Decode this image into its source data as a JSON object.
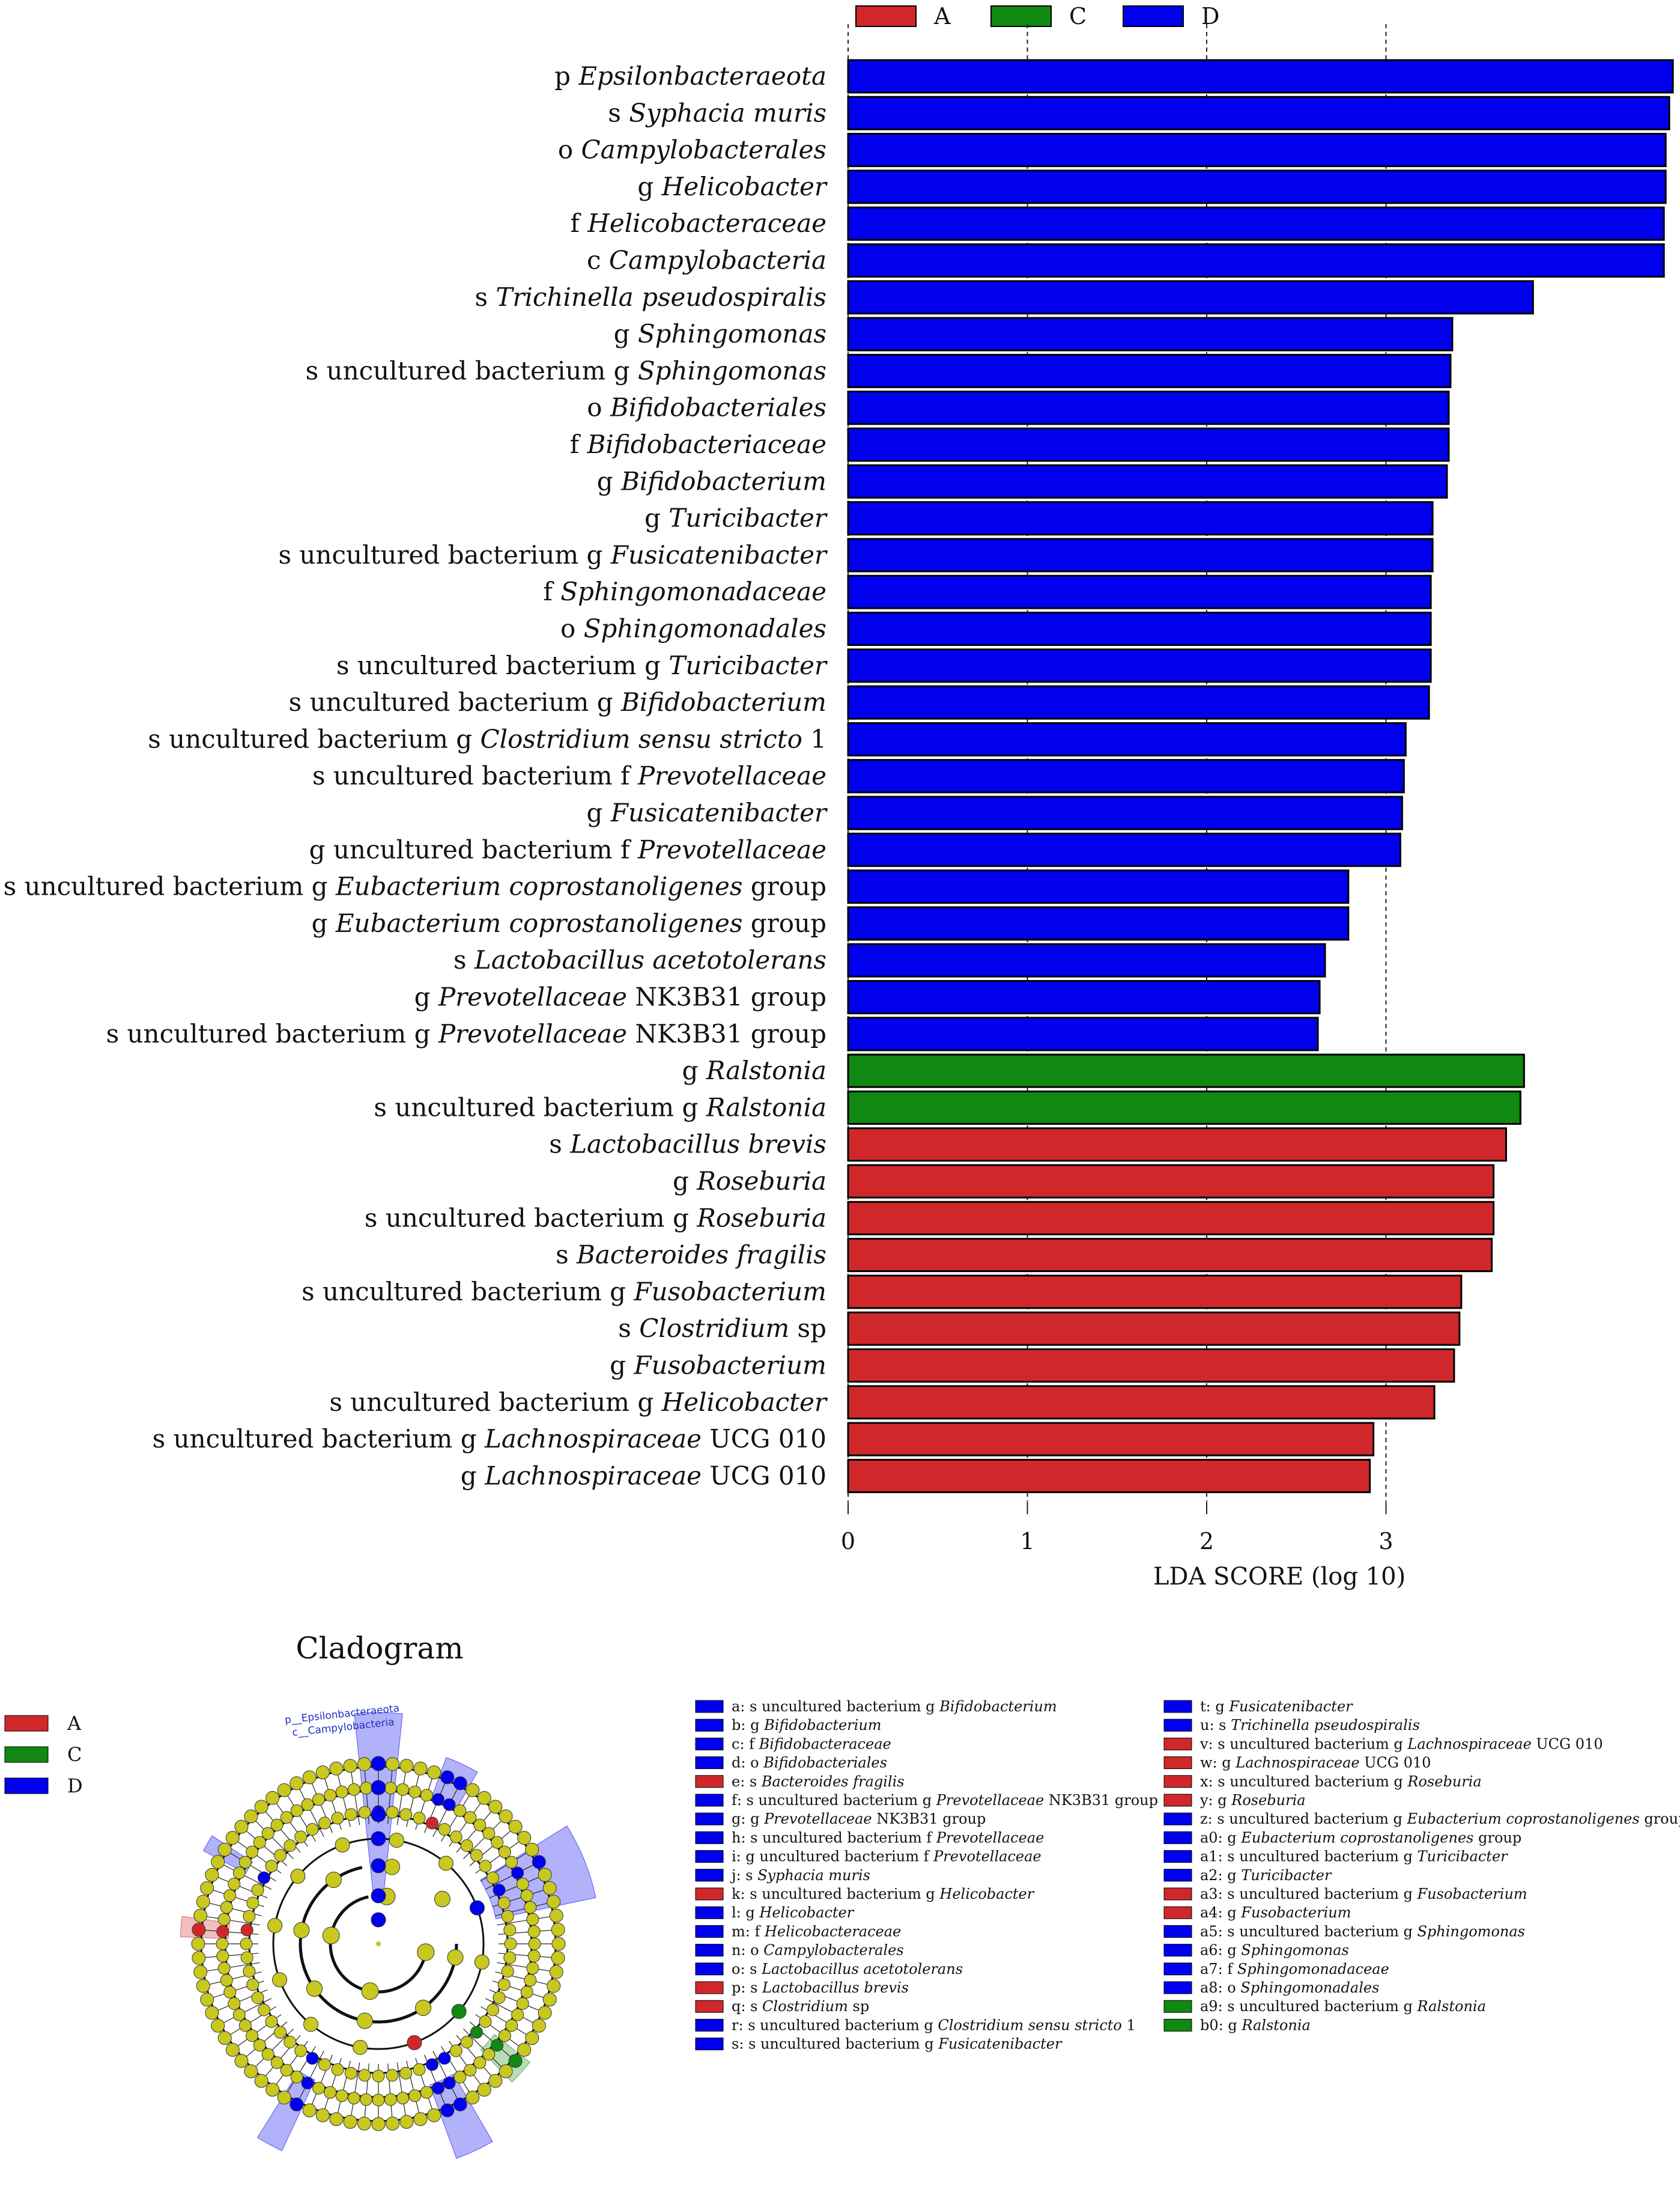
{
  "chart_data": {
    "type": "bar",
    "orientation": "horizontal",
    "xlabel": "LDA SCORE (log 10)",
    "xlim": [
      0,
      4.6
    ],
    "xticks": [
      0,
      1,
      2,
      3
    ],
    "legend": [
      {
        "name": "A",
        "color": "#d0282a"
      },
      {
        "name": "C",
        "color": "#118811"
      },
      {
        "name": "D",
        "color": "#0000ee"
      }
    ],
    "bars": [
      {
        "parts": [
          [
            "p ",
            false
          ],
          [
            "Epsilonbacteraeota",
            true
          ]
        ],
        "value": 4.6,
        "group": "D"
      },
      {
        "parts": [
          [
            "s ",
            false
          ],
          [
            "Syphacia muris",
            true
          ]
        ],
        "value": 4.58,
        "group": "D"
      },
      {
        "parts": [
          [
            "o ",
            false
          ],
          [
            "Campylobacterales",
            true
          ]
        ],
        "value": 4.56,
        "group": "D"
      },
      {
        "parts": [
          [
            "g ",
            false
          ],
          [
            "Helicobacter",
            true
          ]
        ],
        "value": 4.56,
        "group": "D"
      },
      {
        "parts": [
          [
            "f ",
            false
          ],
          [
            "Helicobacteraceae",
            true
          ]
        ],
        "value": 4.55,
        "group": "D"
      },
      {
        "parts": [
          [
            "c ",
            false
          ],
          [
            "Campylobacteria",
            true
          ]
        ],
        "value": 4.55,
        "group": "D"
      },
      {
        "parts": [
          [
            "s ",
            false
          ],
          [
            "Trichinella pseudospiralis",
            true
          ]
        ],
        "value": 3.82,
        "group": "D"
      },
      {
        "parts": [
          [
            "g ",
            false
          ],
          [
            "Sphingomonas",
            true
          ]
        ],
        "value": 3.37,
        "group": "D"
      },
      {
        "parts": [
          [
            "s uncultured bacterium g ",
            false
          ],
          [
            "Sphingomonas",
            true
          ]
        ],
        "value": 3.36,
        "group": "D"
      },
      {
        "parts": [
          [
            "o ",
            false
          ],
          [
            "Bifidobacteriales",
            true
          ]
        ],
        "value": 3.35,
        "group": "D"
      },
      {
        "parts": [
          [
            "f ",
            false
          ],
          [
            "Bifidobacteriaceae",
            true
          ]
        ],
        "value": 3.35,
        "group": "D"
      },
      {
        "parts": [
          [
            "g ",
            false
          ],
          [
            "Bifidobacterium",
            true
          ]
        ],
        "value": 3.34,
        "group": "D"
      },
      {
        "parts": [
          [
            "g ",
            false
          ],
          [
            "Turicibacter",
            true
          ]
        ],
        "value": 3.26,
        "group": "D"
      },
      {
        "parts": [
          [
            "s uncultured bacterium g ",
            false
          ],
          [
            "Fusicatenibacter",
            true
          ]
        ],
        "value": 3.26,
        "group": "D"
      },
      {
        "parts": [
          [
            "f ",
            false
          ],
          [
            "Sphingomonadaceae",
            true
          ]
        ],
        "value": 3.25,
        "group": "D"
      },
      {
        "parts": [
          [
            "o ",
            false
          ],
          [
            "Sphingomonadales",
            true
          ]
        ],
        "value": 3.25,
        "group": "D"
      },
      {
        "parts": [
          [
            "s uncultured bacterium g ",
            false
          ],
          [
            "Turicibacter",
            true
          ]
        ],
        "value": 3.25,
        "group": "D"
      },
      {
        "parts": [
          [
            "s uncultured bacterium g ",
            false
          ],
          [
            "Bifidobacterium",
            true
          ]
        ],
        "value": 3.24,
        "group": "D"
      },
      {
        "parts": [
          [
            "s uncultured bacterium g ",
            false
          ],
          [
            "Clostridium sensu stricto",
            true
          ],
          [
            " 1",
            false
          ]
        ],
        "value": 3.11,
        "group": "D"
      },
      {
        "parts": [
          [
            "s uncultured bacterium f ",
            false
          ],
          [
            "Prevotellaceae",
            true
          ]
        ],
        "value": 3.1,
        "group": "D"
      },
      {
        "parts": [
          [
            "g ",
            false
          ],
          [
            "Fusicatenibacter",
            true
          ]
        ],
        "value": 3.09,
        "group": "D"
      },
      {
        "parts": [
          [
            "g uncultured bacterium f ",
            false
          ],
          [
            "Prevotellaceae",
            true
          ]
        ],
        "value": 3.08,
        "group": "D"
      },
      {
        "parts": [
          [
            "s uncultured bacterium g ",
            false
          ],
          [
            "Eubacterium coprostanoligenes",
            true
          ],
          [
            " group",
            false
          ]
        ],
        "value": 2.79,
        "group": "D"
      },
      {
        "parts": [
          [
            "g ",
            false
          ],
          [
            "Eubacterium coprostanoligenes",
            true
          ],
          [
            " group",
            false
          ]
        ],
        "value": 2.79,
        "group": "D"
      },
      {
        "parts": [
          [
            "s ",
            false
          ],
          [
            "Lactobacillus acetotolerans",
            true
          ]
        ],
        "value": 2.66,
        "group": "D"
      },
      {
        "parts": [
          [
            "g ",
            false
          ],
          [
            "Prevotellaceae",
            true
          ],
          [
            " NK3B31 group",
            false
          ]
        ],
        "value": 2.63,
        "group": "D"
      },
      {
        "parts": [
          [
            "s uncultured bacterium g ",
            false
          ],
          [
            "Prevotellaceae",
            true
          ],
          [
            " NK3B31 group",
            false
          ]
        ],
        "value": 2.62,
        "group": "D"
      },
      {
        "parts": [
          [
            "g ",
            false
          ],
          [
            "Ralstonia",
            true
          ]
        ],
        "value": 3.77,
        "group": "C"
      },
      {
        "parts": [
          [
            "s uncultured bacterium g ",
            false
          ],
          [
            "Ralstonia",
            true
          ]
        ],
        "value": 3.75,
        "group": "C"
      },
      {
        "parts": [
          [
            "s ",
            false
          ],
          [
            "Lactobacillus brevis",
            true
          ]
        ],
        "value": 3.67,
        "group": "A"
      },
      {
        "parts": [
          [
            "g ",
            false
          ],
          [
            "Roseburia",
            true
          ]
        ],
        "value": 3.6,
        "group": "A"
      },
      {
        "parts": [
          [
            "s uncultured bacterium g ",
            false
          ],
          [
            "Roseburia",
            true
          ]
        ],
        "value": 3.6,
        "group": "A"
      },
      {
        "parts": [
          [
            "s ",
            false
          ],
          [
            "Bacteroides fragilis",
            true
          ]
        ],
        "value": 3.59,
        "group": "A"
      },
      {
        "parts": [
          [
            "s uncultured bacterium g ",
            false
          ],
          [
            "Fusobacterium",
            true
          ]
        ],
        "value": 3.42,
        "group": "A"
      },
      {
        "parts": [
          [
            "s ",
            false
          ],
          [
            "Clostridium",
            true
          ],
          [
            " sp",
            false
          ]
        ],
        "value": 3.41,
        "group": "A"
      },
      {
        "parts": [
          [
            "g ",
            false
          ],
          [
            "Fusobacterium",
            true
          ]
        ],
        "value": 3.38,
        "group": "A"
      },
      {
        "parts": [
          [
            "s uncultured bacterium g ",
            false
          ],
          [
            "Helicobacter",
            true
          ]
        ],
        "value": 3.27,
        "group": "A"
      },
      {
        "parts": [
          [
            "s uncultured bacterium g ",
            false
          ],
          [
            "Lachnospiraceae",
            true
          ],
          [
            " UCG 010",
            false
          ]
        ],
        "value": 2.93,
        "group": "A"
      },
      {
        "parts": [
          [
            "g ",
            false
          ],
          [
            "Lachnospiraceae",
            true
          ],
          [
            " UCG 010",
            false
          ]
        ],
        "value": 2.91,
        "group": "A"
      }
    ]
  },
  "cladogram": {
    "title": "Cladogram",
    "legend": [
      {
        "name": "A",
        "color": "#d0282a"
      },
      {
        "name": "C",
        "color": "#118811"
      },
      {
        "name": "D",
        "color": "#0000ee"
      }
    ],
    "top_labels": [
      "p__Epsilonbacteraeota",
      "c__Campylobacteria"
    ],
    "key": [
      {
        "parts": [
          [
            "a: s uncultured bacterium g ",
            false
          ],
          [
            "Bifidobacterium",
            true
          ]
        ],
        "group": "D"
      },
      {
        "parts": [
          [
            "b: g ",
            false
          ],
          [
            "Bifidobacterium",
            true
          ]
        ],
        "group": "D"
      },
      {
        "parts": [
          [
            "c: f ",
            false
          ],
          [
            "Bifidobacteraceae",
            true
          ]
        ],
        "group": "D"
      },
      {
        "parts": [
          [
            "d: o ",
            false
          ],
          [
            "Bifidobacteriales",
            true
          ]
        ],
        "group": "D"
      },
      {
        "parts": [
          [
            "e: s ",
            false
          ],
          [
            "Bacteroides fragilis",
            true
          ]
        ],
        "group": "A"
      },
      {
        "parts": [
          [
            "f: s uncultured bacterium g ",
            false
          ],
          [
            "Prevotellaceae",
            true
          ],
          [
            " NK3B31 group",
            false
          ]
        ],
        "group": "D"
      },
      {
        "parts": [
          [
            "g: g ",
            false
          ],
          [
            "Prevotellaceae",
            true
          ],
          [
            " NK3B31 group",
            false
          ]
        ],
        "group": "D"
      },
      {
        "parts": [
          [
            "h: s uncultured bacterium f ",
            false
          ],
          [
            "Prevotellaceae",
            true
          ]
        ],
        "group": "D"
      },
      {
        "parts": [
          [
            "i: g uncultured bacterium f ",
            false
          ],
          [
            "Prevotellaceae",
            true
          ]
        ],
        "group": "D"
      },
      {
        "parts": [
          [
            "j: s ",
            false
          ],
          [
            "Syphacia muris",
            true
          ]
        ],
        "group": "D"
      },
      {
        "parts": [
          [
            "k: s uncultured bacterium g ",
            false
          ],
          [
            "Helicobacter",
            true
          ]
        ],
        "group": "A"
      },
      {
        "parts": [
          [
            "l: g ",
            false
          ],
          [
            "Helicobacter",
            true
          ]
        ],
        "group": "D"
      },
      {
        "parts": [
          [
            "m: f ",
            false
          ],
          [
            "Helicobacteraceae",
            true
          ]
        ],
        "group": "D"
      },
      {
        "parts": [
          [
            "n: o ",
            false
          ],
          [
            "Campylobacterales",
            true
          ]
        ],
        "group": "D"
      },
      {
        "parts": [
          [
            "o: s ",
            false
          ],
          [
            "Lactobacillus acetotolerans",
            true
          ]
        ],
        "group": "D"
      },
      {
        "parts": [
          [
            "p: s ",
            false
          ],
          [
            "Lactobacillus brevis",
            true
          ]
        ],
        "group": "A"
      },
      {
        "parts": [
          [
            "q: s ",
            false
          ],
          [
            "Clostridium",
            true
          ],
          [
            " sp",
            false
          ]
        ],
        "group": "A"
      },
      {
        "parts": [
          [
            "r: s uncultured bacterium g ",
            false
          ],
          [
            "Clostridium sensu stricto",
            true
          ],
          [
            " 1",
            false
          ]
        ],
        "group": "D"
      },
      {
        "parts": [
          [
            "s: s uncultured bacterium g ",
            false
          ],
          [
            "Fusicatenibacter",
            true
          ]
        ],
        "group": "D"
      },
      {
        "parts": [
          [
            "t: g ",
            false
          ],
          [
            "Fusicatenibacter",
            true
          ]
        ],
        "group": "D"
      },
      {
        "parts": [
          [
            "u: s ",
            false
          ],
          [
            "Trichinella pseudospiralis",
            true
          ]
        ],
        "group": "D"
      },
      {
        "parts": [
          [
            "v: s uncultured bacterium g ",
            false
          ],
          [
            "Lachnospiraceae",
            true
          ],
          [
            " UCG 010",
            false
          ]
        ],
        "group": "A"
      },
      {
        "parts": [
          [
            "w: g ",
            false
          ],
          [
            "Lachnospiraceae",
            true
          ],
          [
            " UCG 010",
            false
          ]
        ],
        "group": "A"
      },
      {
        "parts": [
          [
            "x: s uncultured bacterium g ",
            false
          ],
          [
            "Roseburia",
            true
          ]
        ],
        "group": "A"
      },
      {
        "parts": [
          [
            "y: g ",
            false
          ],
          [
            "Roseburia",
            true
          ]
        ],
        "group": "A"
      },
      {
        "parts": [
          [
            "z: s uncultured bacterium g ",
            false
          ],
          [
            "Eubacterium coprostanoligenes",
            true
          ],
          [
            " group",
            false
          ]
        ],
        "group": "D"
      },
      {
        "parts": [
          [
            "a0: g ",
            false
          ],
          [
            "Eubacterium coprostanoligenes",
            true
          ],
          [
            " group",
            false
          ]
        ],
        "group": "D"
      },
      {
        "parts": [
          [
            "a1: s uncultured bacterium g ",
            false
          ],
          [
            "Turicibacter",
            true
          ]
        ],
        "group": "D"
      },
      {
        "parts": [
          [
            "a2: g ",
            false
          ],
          [
            "Turicibacter",
            true
          ]
        ],
        "group": "D"
      },
      {
        "parts": [
          [
            "a3: s uncultured bacterium g ",
            false
          ],
          [
            "Fusobacterium",
            true
          ]
        ],
        "group": "A"
      },
      {
        "parts": [
          [
            "a4: g ",
            false
          ],
          [
            "Fusobacterium",
            true
          ]
        ],
        "group": "A"
      },
      {
        "parts": [
          [
            "a5: s uncultured bacterium g ",
            false
          ],
          [
            "Sphingomonas",
            true
          ]
        ],
        "group": "D"
      },
      {
        "parts": [
          [
            "a6: g ",
            false
          ],
          [
            "Sphingomonas",
            true
          ]
        ],
        "group": "D"
      },
      {
        "parts": [
          [
            "a7: f ",
            false
          ],
          [
            "Sphingomonadaceae",
            true
          ]
        ],
        "group": "D"
      },
      {
        "parts": [
          [
            "a8: o ",
            false
          ],
          [
            "Sphingomonadales",
            true
          ]
        ],
        "group": "D"
      },
      {
        "parts": [
          [
            "a9: s uncultured bacterium g ",
            false
          ],
          [
            "Ralstonia",
            true
          ]
        ],
        "group": "C"
      },
      {
        "parts": [
          [
            "b0: g ",
            false
          ],
          [
            "Ralstonia",
            true
          ]
        ],
        "group": "C"
      }
    ]
  }
}
